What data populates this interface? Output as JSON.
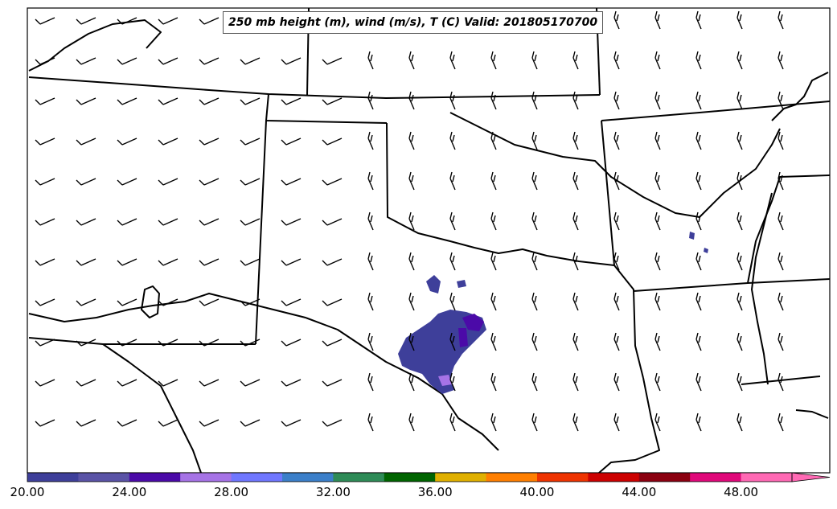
{
  "title": "250 mb height (m), wind (m/s), T (C) Valid: 201805170700",
  "colorbar": {
    "tick_labels": [
      "20.00",
      "24.00",
      "28.00",
      "32.00",
      "36.00",
      "40.00",
      "44.00",
      "48.00"
    ],
    "colors": [
      "#3e3f9a",
      "#5a53a6",
      "#4b0aa8",
      "#a673e6",
      "#7077ff",
      "#3b7fc9",
      "#2e8b57",
      "#006400",
      "#e0b000",
      "#ff7f00",
      "#ee3300",
      "#cc0000",
      "#8b0010",
      "#e0087a",
      "#ff69b4"
    ],
    "extend": "max"
  }
}
